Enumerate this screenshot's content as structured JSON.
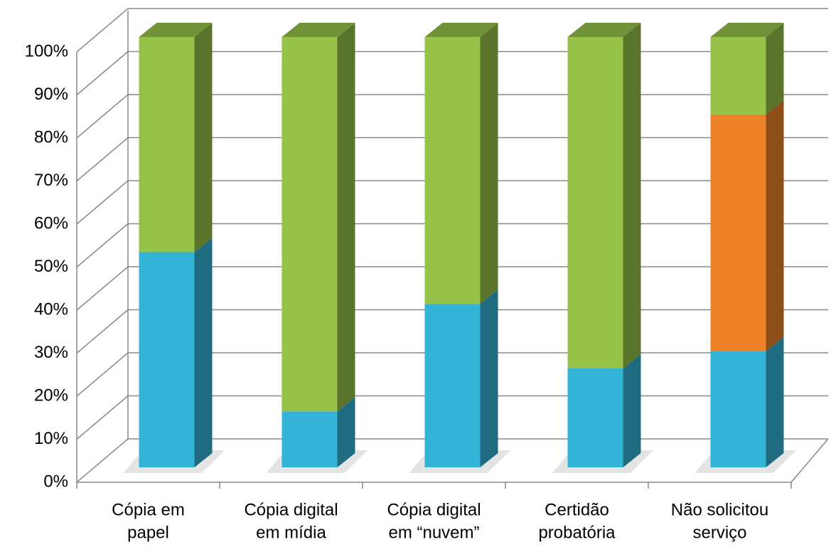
{
  "chart_data": {
    "type": "bar3d_stacked",
    "categories": [
      [
        "Cópia em",
        "papel"
      ],
      [
        "Cópia digital",
        "em mídia"
      ],
      [
        "Cópia digital",
        "em “nuvem”"
      ],
      [
        "Certidão",
        "probatória"
      ],
      [
        "Não solicitou",
        "serviço"
      ]
    ],
    "series": [
      {
        "color": "#33b3d6",
        "values": [
          50,
          13,
          38,
          23,
          27
        ]
      },
      {
        "color": "#ee8228",
        "values": [
          0,
          0,
          0,
          0,
          55
        ]
      },
      {
        "color": "#96c24a",
        "values": [
          50,
          87,
          62,
          77,
          18
        ]
      }
    ],
    "ylim": [
      0,
      100
    ],
    "yticks": [
      {
        "value": 0,
        "label": "0%"
      },
      {
        "value": 10,
        "label": "10%"
      },
      {
        "value": 20,
        "label": "20%"
      },
      {
        "value": 30,
        "label": "30%"
      },
      {
        "value": 40,
        "label": "40%"
      },
      {
        "value": 50,
        "label": "50%"
      },
      {
        "value": 60,
        "label": "60%"
      },
      {
        "value": 70,
        "label": "70%"
      },
      {
        "value": 80,
        "label": "80%"
      },
      {
        "value": 90,
        "label": "90%"
      },
      {
        "value": 100,
        "label": "100%"
      }
    ],
    "grid": true
  }
}
